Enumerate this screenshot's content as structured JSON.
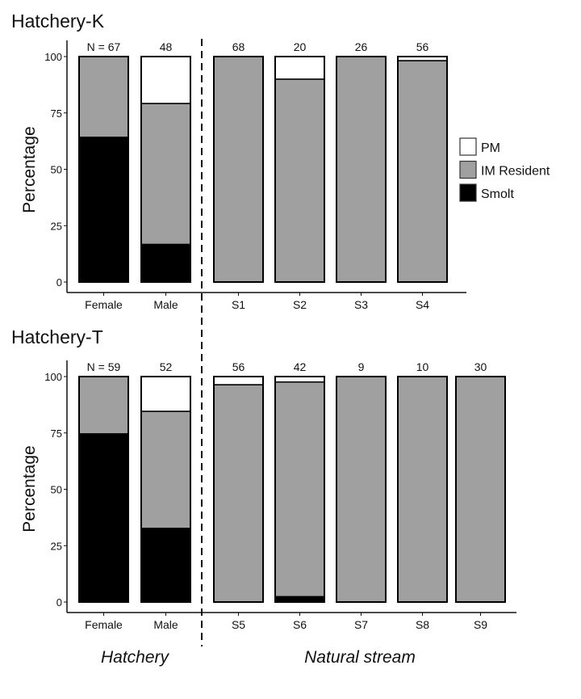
{
  "chart_data": [
    {
      "type": "bar",
      "stacked": true,
      "title": "Hatchery-K",
      "ylabel": "Percentage",
      "ylim": [
        0,
        100
      ],
      "yticks": [
        0,
        25,
        50,
        75,
        100
      ],
      "categories": [
        "Female",
        "Male",
        "S1",
        "S2",
        "S3",
        "S4"
      ],
      "n_labels": [
        "N = 67",
        "48",
        "68",
        "20",
        "26",
        "56"
      ],
      "series": [
        {
          "name": "Smolt",
          "color": "#000000",
          "values": [
            64.2,
            16.7,
            0,
            0,
            0,
            0
          ]
        },
        {
          "name": "IM Resident",
          "color": "#a0a0a0",
          "values": [
            35.8,
            62.5,
            100,
            90,
            100,
            98.2
          ]
        },
        {
          "name": "PM",
          "color": "#ffffff",
          "values": [
            0,
            20.8,
            0,
            10,
            0,
            1.8
          ]
        }
      ]
    },
    {
      "type": "bar",
      "stacked": true,
      "title": "Hatchery-T",
      "ylabel": "Percentage",
      "ylim": [
        0,
        100
      ],
      "yticks": [
        0,
        25,
        50,
        75,
        100
      ],
      "categories": [
        "Female",
        "Male",
        "S5",
        "S6",
        "S7",
        "S8",
        "S9"
      ],
      "n_labels": [
        "N = 59",
        "52",
        "56",
        "42",
        "9",
        "10",
        "30"
      ],
      "series": [
        {
          "name": "Smolt",
          "color": "#000000",
          "values": [
            74.6,
            32.7,
            0,
            2.4,
            0,
            0,
            0
          ]
        },
        {
          "name": "IM Resident",
          "color": "#a0a0a0",
          "values": [
            25.4,
            51.9,
            96.4,
            95.2,
            100,
            100,
            100
          ]
        },
        {
          "name": "PM",
          "color": "#ffffff",
          "values": [
            0,
            15.4,
            3.6,
            2.4,
            0,
            0,
            0
          ]
        }
      ]
    }
  ],
  "legend": {
    "placement": "right",
    "items": [
      {
        "label": "PM",
        "color": "#ffffff"
      },
      {
        "label": "IM Resident",
        "color": "#a0a0a0"
      },
      {
        "label": "Smolt",
        "color": "#000000"
      }
    ]
  },
  "group_labels": {
    "left": "Hatchery",
    "right": "Natural stream"
  }
}
